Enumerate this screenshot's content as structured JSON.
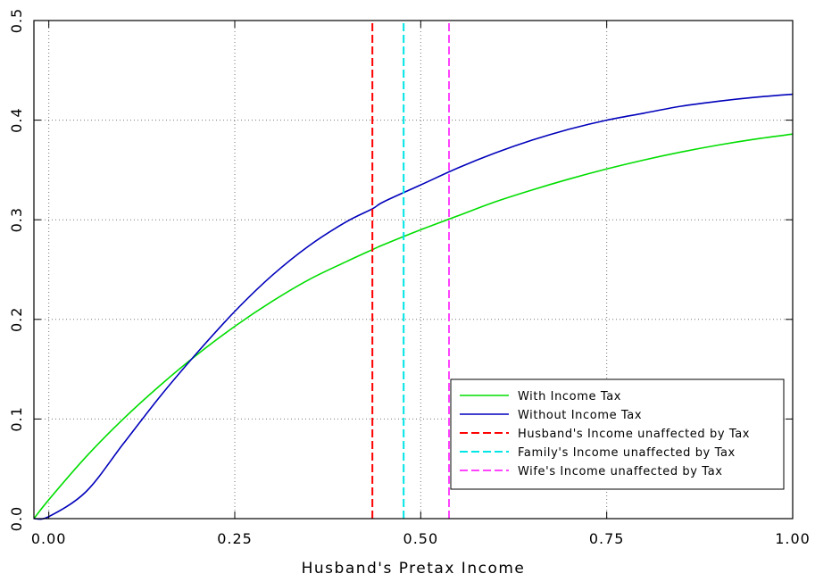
{
  "chart_data": {
    "type": "line",
    "title": "",
    "xlabel": "Husband's Pretax Income",
    "ylabel": "",
    "xlim": [
      -0.02,
      1.0
    ],
    "ylim": [
      0.0,
      0.5
    ],
    "x_ticks": [
      {
        "value": 0.0,
        "label": "0.00"
      },
      {
        "value": 0.25,
        "label": "0.25"
      },
      {
        "value": 0.5,
        "label": "0.50"
      },
      {
        "value": 0.75,
        "label": "0.75"
      },
      {
        "value": 1.0,
        "label": "1.00"
      }
    ],
    "y_ticks": [
      {
        "value": 0.0,
        "label": "0.0"
      },
      {
        "value": 0.1,
        "label": "0.1"
      },
      {
        "value": 0.2,
        "label": "0.2"
      },
      {
        "value": 0.3,
        "label": "0.3"
      },
      {
        "value": 0.4,
        "label": "0.4"
      },
      {
        "value": 0.5,
        "label": "0.5"
      }
    ],
    "grid": true,
    "legend_position": "lower-right",
    "series": [
      {
        "name": "With Income Tax",
        "color": "#00dd00",
        "style": "solid",
        "x": [
          -0.02,
          0.0,
          0.05,
          0.1,
          0.15,
          0.2,
          0.25,
          0.3,
          0.35,
          0.4,
          0.435,
          0.45,
          0.5,
          0.55,
          0.6,
          0.65,
          0.7,
          0.75,
          0.8,
          0.85,
          0.9,
          0.95,
          1.0
        ],
        "y": [
          0.0,
          0.019,
          0.062,
          0.1,
          0.134,
          0.165,
          0.193,
          0.218,
          0.24,
          0.258,
          0.27,
          0.275,
          0.29,
          0.304,
          0.318,
          0.33,
          0.341,
          0.351,
          0.36,
          0.368,
          0.375,
          0.381,
          0.386
        ]
      },
      {
        "name": "Without Income Tax",
        "color": "#0000bb",
        "style": "solid",
        "x": [
          -0.02,
          0.0,
          0.05,
          0.1,
          0.15,
          0.2,
          0.25,
          0.3,
          0.35,
          0.4,
          0.435,
          0.45,
          0.5,
          0.55,
          0.6,
          0.65,
          0.7,
          0.75,
          0.8,
          0.85,
          0.9,
          0.95,
          1.0
        ],
        "y": [
          0.0,
          0.002,
          0.027,
          0.075,
          0.123,
          0.167,
          0.208,
          0.244,
          0.274,
          0.298,
          0.311,
          0.318,
          0.335,
          0.352,
          0.367,
          0.38,
          0.391,
          0.4,
          0.407,
          0.414,
          0.419,
          0.423,
          0.426
        ]
      },
      {
        "name": "Husband's Income unaffected by Tax",
        "color": "#ff0000",
        "style": "dashed",
        "x": [
          0.435,
          0.435
        ],
        "y": [
          0.0,
          0.5
        ]
      },
      {
        "name": "Family's Income unaffected by Tax",
        "color": "#00e5e5",
        "style": "dashed",
        "x": [
          0.477,
          0.477
        ],
        "y": [
          0.0,
          0.5
        ]
      },
      {
        "name": "Wife's Income unaffected by Tax",
        "color": "#ff44ff",
        "style": "dashed",
        "x": [
          0.538,
          0.538
        ],
        "y": [
          0.0,
          0.5
        ]
      }
    ]
  }
}
